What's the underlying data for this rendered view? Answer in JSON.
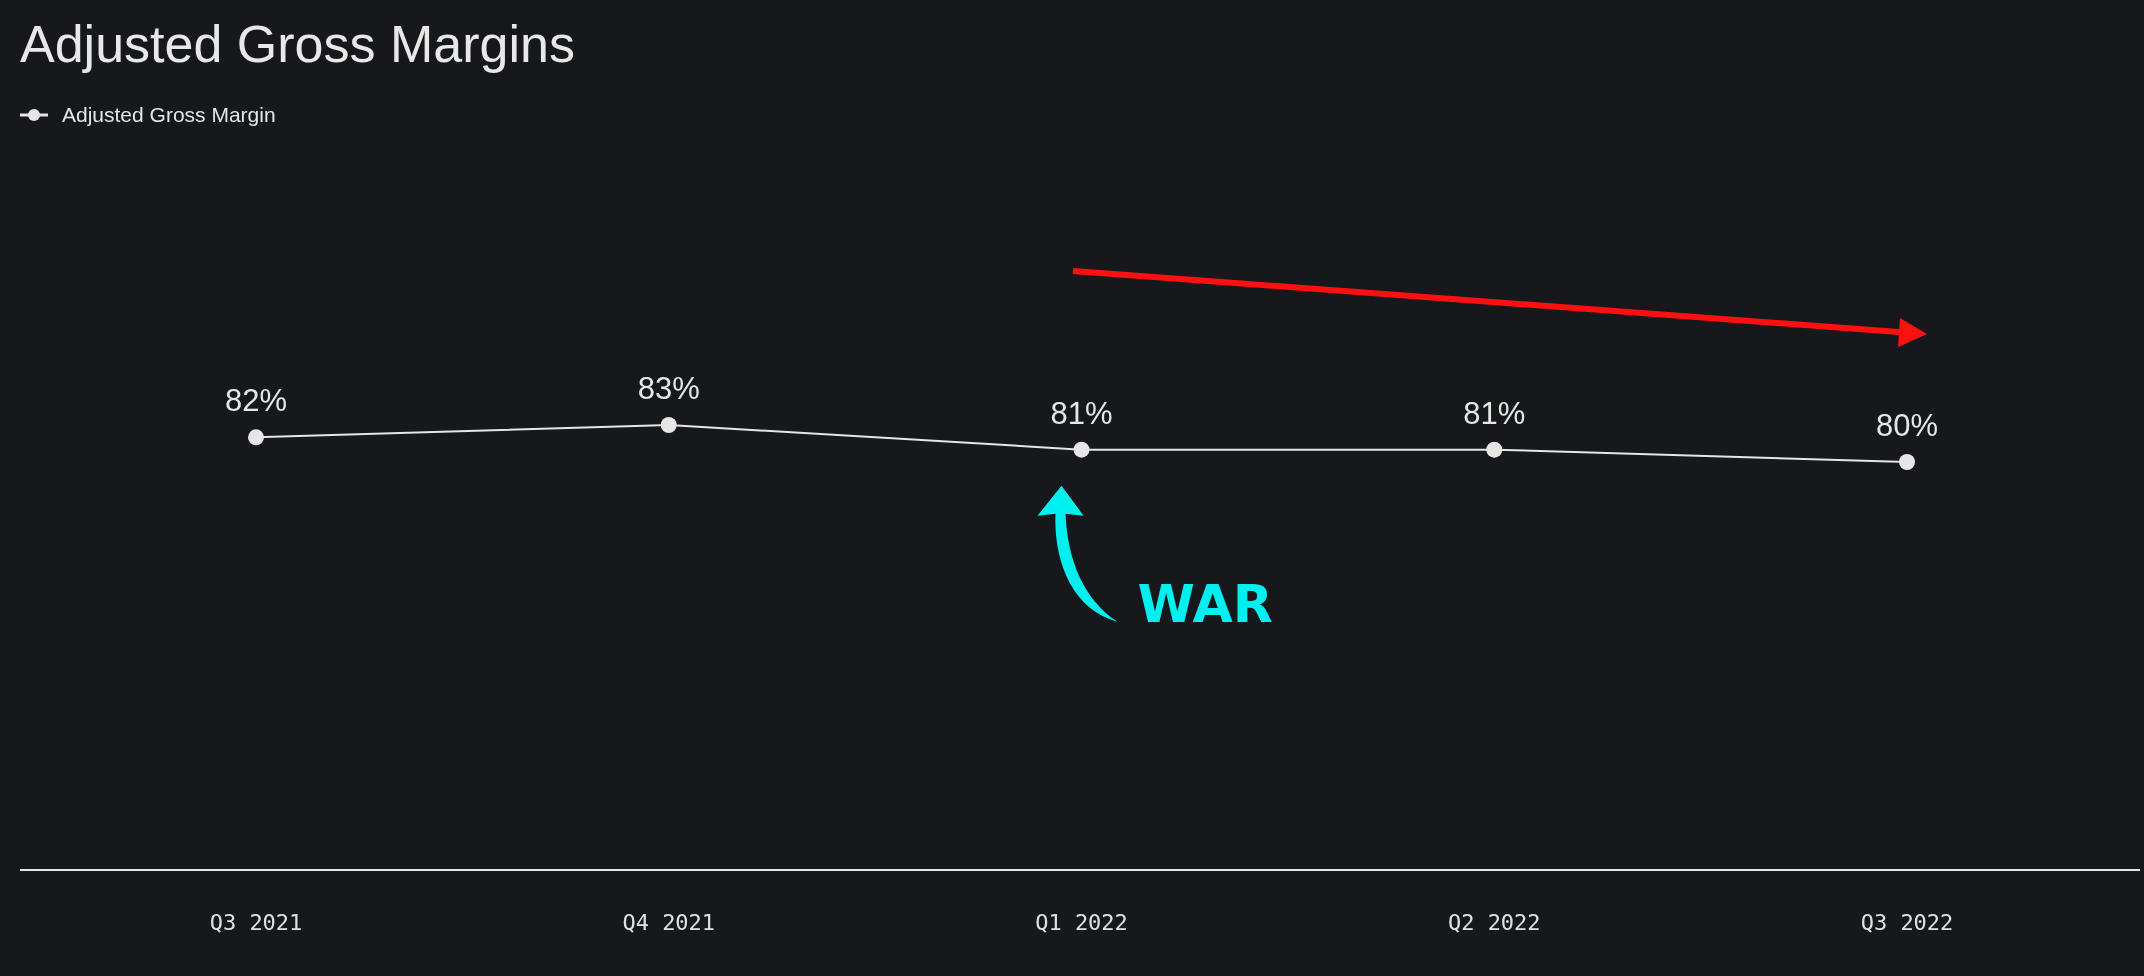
{
  "chart_data": {
    "type": "line",
    "title": "Adjusted Gross Margins",
    "categories": [
      "Q3 2021",
      "Q4 2021",
      "Q1 2022",
      "Q2 2022",
      "Q3 2022"
    ],
    "series": [
      {
        "name": "Adjusted Gross Margin",
        "color": "#e6e6e6",
        "values": [
          82,
          83,
          81,
          81,
          80
        ],
        "value_labels": [
          "82%",
          "83%",
          "81%",
          "81%",
          "80%"
        ]
      }
    ],
    "tick_labels": "x",
    "legend": "top left",
    "marker": "circle",
    "grid": false,
    "annotations": [
      {
        "text": "WAR",
        "x": "Q1 2022",
        "y": 81
      }
    ]
  }
}
